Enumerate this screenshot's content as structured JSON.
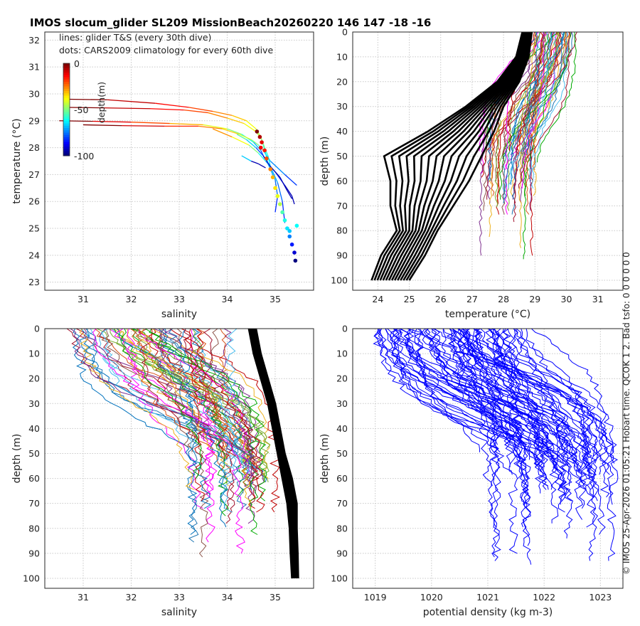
{
  "figure_title": "IMOS slocum_glider SL209 MissionBeach20260220 146  147  -18  -16",
  "side_text": "© IMOS 25-Apr-2026 01:05:21 Hobart time. QCOK 1  2. Bad tsfo: 0  0  0  0  0  0",
  "chart_data": [
    {
      "id": "ts",
      "type": "scatter",
      "title": "",
      "xlabel": "salinity",
      "ylabel": "temperature (°C)",
      "xlim": [
        30.2,
        35.8
      ],
      "ylim": [
        22.7,
        32.3
      ],
      "xticks": [
        31,
        32,
        33,
        34,
        35
      ],
      "yticks": [
        23,
        24,
        25,
        26,
        27,
        28,
        29,
        30,
        31,
        32
      ],
      "legend": {
        "lines": "lines: glider T&S (every 30th dive)",
        "dots": "dots: CARS2009 climatology for every 60th dive"
      },
      "colorbar": {
        "label": "depth(m)",
        "ticks": [
          "0",
          "-50",
          "-100"
        ],
        "min": -100,
        "max": 0,
        "colormap": "jet"
      },
      "series": [
        {
          "name": "glider T&S 1",
          "depth_color": 0,
          "x": [
            30.7,
            31.5,
            32.5,
            33.2,
            33.7,
            34.1,
            34.4,
            34.6,
            34.7,
            34.75,
            34.8,
            34.85,
            35.0,
            35.05,
            35.0
          ],
          "y": [
            29.8,
            29.78,
            29.65,
            29.5,
            29.35,
            29.2,
            29.0,
            28.7,
            28.4,
            28.1,
            27.8,
            27.4,
            26.8,
            26.2,
            25.6
          ]
        },
        {
          "name": "glider T&S 2",
          "depth_color": 0,
          "x": [
            30.6,
            31.4,
            32.4,
            33.1,
            33.6,
            34.0,
            34.35,
            34.6,
            34.72,
            34.78,
            34.85,
            34.9,
            35.05,
            35.15,
            35.2
          ],
          "y": [
            29.5,
            29.48,
            29.45,
            29.4,
            29.3,
            29.1,
            28.9,
            28.6,
            28.3,
            28.0,
            27.7,
            27.3,
            26.7,
            26.0,
            25.2
          ]
        },
        {
          "name": "glider T&S 3",
          "depth_color": 0,
          "x": [
            30.5,
            31.2,
            32.0,
            32.8,
            33.5,
            34.0,
            34.3,
            34.55,
            34.7,
            34.78
          ],
          "y": [
            29.0,
            28.98,
            28.95,
            28.9,
            28.85,
            28.7,
            28.5,
            28.2,
            27.9,
            27.6
          ]
        },
        {
          "name": "glider T&S 4",
          "depth_color": 0,
          "x": [
            31.0,
            31.8,
            32.7,
            33.4,
            33.9,
            34.25,
            34.5,
            34.65,
            34.75,
            34.9,
            35.2,
            35.45
          ],
          "y": [
            28.85,
            28.82,
            28.8,
            28.8,
            28.7,
            28.5,
            28.3,
            28.1,
            27.9,
            27.5,
            27.0,
            26.6
          ]
        },
        {
          "name": "glider T&S 5",
          "depth_color": -30,
          "x": [
            33.7,
            34.1,
            34.45,
            34.65,
            34.8,
            35.0,
            35.2,
            35.35,
            35.4
          ],
          "y": [
            28.7,
            28.4,
            28.1,
            27.8,
            27.5,
            27.1,
            26.6,
            26.2,
            25.9
          ]
        },
        {
          "name": "glider T&S 6",
          "depth_color": -60,
          "x": [
            34.2,
            34.4,
            34.6,
            34.75,
            34.9,
            35.1,
            35.25,
            35.35
          ],
          "y": [
            28.5,
            28.3,
            28.0,
            27.7,
            27.3,
            26.9,
            26.4,
            26.1
          ]
        },
        {
          "name": "glider T&S 7",
          "depth_color": -75,
          "x": [
            34.3,
            34.5,
            34.65,
            34.8
          ],
          "y": [
            27.7,
            27.5,
            27.4,
            27.25
          ]
        }
      ],
      "climatology_points": [
        {
          "x": 34.62,
          "y": 28.6,
          "d": 0
        },
        {
          "x": 34.68,
          "y": 28.4,
          "d": -5
        },
        {
          "x": 34.72,
          "y": 28.2,
          "d": -10
        },
        {
          "x": 34.7,
          "y": 28.0,
          "d": -12
        },
        {
          "x": 34.78,
          "y": 27.9,
          "d": -15
        },
        {
          "x": 34.82,
          "y": 27.6,
          "d": -20
        },
        {
          "x": 34.9,
          "y": 27.2,
          "d": -25
        },
        {
          "x": 34.95,
          "y": 26.9,
          "d": -30
        },
        {
          "x": 35.0,
          "y": 26.5,
          "d": -35
        },
        {
          "x": 35.05,
          "y": 26.2,
          "d": -40
        },
        {
          "x": 35.1,
          "y": 25.9,
          "d": -45
        },
        {
          "x": 35.15,
          "y": 25.6,
          "d": -55
        },
        {
          "x": 35.2,
          "y": 25.3,
          "d": -60
        },
        {
          "x": 35.25,
          "y": 25.0,
          "d": -65
        },
        {
          "x": 35.3,
          "y": 24.7,
          "d": -75
        },
        {
          "x": 35.35,
          "y": 24.4,
          "d": -85
        },
        {
          "x": 35.4,
          "y": 24.1,
          "d": -92
        },
        {
          "x": 35.42,
          "y": 23.8,
          "d": -100
        },
        {
          "x": 35.45,
          "y": 25.1,
          "d": -62
        },
        {
          "x": 35.3,
          "y": 24.9,
          "d": -68
        }
      ]
    },
    {
      "id": "temp_depth",
      "type": "line",
      "xlabel": "temperature (°C)",
      "ylabel": "depth (m)",
      "xlim": [
        23.2,
        31.8
      ],
      "ylim": [
        104,
        0
      ],
      "xticks": [
        24,
        25,
        26,
        27,
        28,
        29,
        30,
        31
      ],
      "yticks": [
        0,
        10,
        20,
        30,
        40,
        50,
        60,
        70,
        80,
        90,
        100
      ],
      "climatology": {
        "color": "#000000",
        "depth": [
          0,
          10,
          20,
          30,
          40,
          50,
          60,
          70,
          80,
          90,
          100
        ],
        "low": [
          28.6,
          28.4,
          27.8,
          26.8,
          25.6,
          24.2,
          24.4,
          24.4,
          24.6,
          24.1,
          23.8
        ],
        "high": [
          28.9,
          28.8,
          28.5,
          28.0,
          27.7,
          27.3,
          26.9,
          26.4,
          25.9,
          25.5,
          25.0
        ]
      },
      "glider": {
        "depth": [
          0,
          5,
          10,
          15,
          20,
          25,
          30,
          35,
          40,
          45,
          50,
          55,
          60,
          65,
          70,
          80,
          90,
          95
        ],
        "surface_min": 28.8,
        "surface_max": 30.4,
        "deep_min": 27.2,
        "deep_max": 29.0
      }
    },
    {
      "id": "sal_depth",
      "type": "line",
      "xlabel": "salinity",
      "ylabel": "depth (m)",
      "xlim": [
        30.2,
        35.8
      ],
      "ylim": [
        104,
        0
      ],
      "xticks": [
        31,
        32,
        33,
        34,
        35
      ],
      "yticks": [
        0,
        10,
        20,
        30,
        40,
        50,
        60,
        70,
        80,
        90,
        100
      ],
      "climatology": {
        "color": "#000000",
        "depth": [
          0,
          10,
          20,
          30,
          40,
          50,
          60,
          70,
          80,
          90,
          100
        ],
        "low": [
          34.45,
          34.55,
          34.7,
          34.85,
          34.95,
          35.05,
          35.15,
          35.25,
          35.3,
          35.32,
          35.35
        ],
        "high": [
          34.6,
          34.7,
          34.85,
          35.0,
          35.1,
          35.2,
          35.35,
          35.45,
          35.45,
          35.47,
          35.48
        ]
      },
      "glider": {
        "depth": [
          0,
          5,
          10,
          15,
          20,
          25,
          30,
          35,
          40,
          45,
          50,
          55,
          60,
          70,
          80,
          90,
          95
        ],
        "surface_min": 30.6,
        "surface_max": 34.2,
        "deep_min": 33.2,
        "deep_max": 35.0
      }
    },
    {
      "id": "dens_depth",
      "type": "line",
      "xlabel": "potential density (kg m-3)",
      "ylabel": "depth (m)",
      "xlim": [
        1018.6,
        1023.4
      ],
      "ylim": [
        104,
        0
      ],
      "xticks": [
        1019,
        1020,
        1021,
        1022,
        1023
      ],
      "yticks": [
        0,
        10,
        20,
        30,
        40,
        50,
        60,
        70,
        80,
        90,
        100
      ],
      "line_color": "#0000ff",
      "glider": {
        "depth": [
          0,
          5,
          10,
          15,
          20,
          25,
          30,
          35,
          40,
          45,
          50,
          55,
          60,
          70,
          80,
          90,
          95
        ],
        "surface_min": 1018.9,
        "surface_max": 1021.6,
        "deep_min": 1021.0,
        "deep_max": 1023.3
      }
    }
  ]
}
